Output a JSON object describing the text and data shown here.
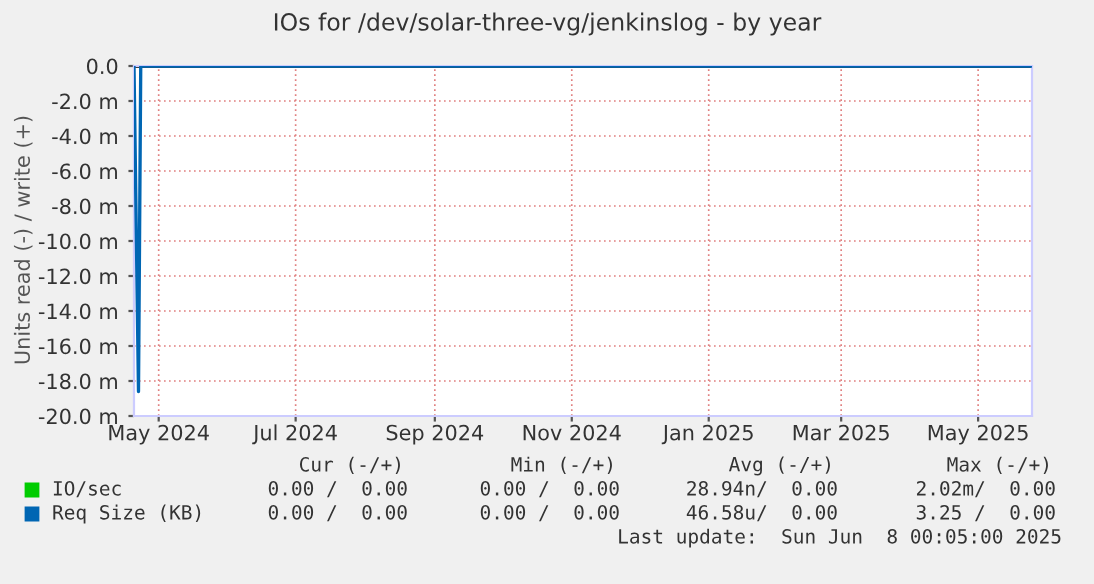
{
  "chart_data": {
    "type": "line",
    "title": "IOs for /dev/solar-three-vg/jenkinslog - by year",
    "ylabel": "Units read (-) / write (+)",
    "xlim": [
      "2024-05-04",
      "2025-06-08"
    ],
    "xticks": [
      {
        "value": "2024-05-15",
        "label": "May 2024"
      },
      {
        "value": "2024-07-15",
        "label": "Jul 2024"
      },
      {
        "value": "2024-09-15",
        "label": "Sep 2024"
      },
      {
        "value": "2024-11-15",
        "label": "Nov 2024"
      },
      {
        "value": "2025-01-15",
        "label": "Jan 2025"
      },
      {
        "value": "2025-03-15",
        "label": "Mar 2025"
      },
      {
        "value": "2025-05-15",
        "label": "May 2025"
      }
    ],
    "ylim": [
      -20,
      0
    ],
    "yticks": [
      {
        "value": 0,
        "label": "0.0"
      },
      {
        "value": -2,
        "label": "-2.0 m"
      },
      {
        "value": -4,
        "label": "-4.0 m"
      },
      {
        "value": -6,
        "label": "-6.0 m"
      },
      {
        "value": -8,
        "label": "-8.0 m"
      },
      {
        "value": -10,
        "label": "-10.0 m"
      },
      {
        "value": -12,
        "label": "-12.0 m"
      },
      {
        "value": -14,
        "label": "-14.0 m"
      },
      {
        "value": -16,
        "label": "-16.0 m"
      },
      {
        "value": -18,
        "label": "-18.0 m"
      },
      {
        "value": -20,
        "label": "-20.0 m"
      }
    ],
    "grid": true,
    "legend": "bottom",
    "ref_lines": [
      {
        "axis": "y",
        "value": 0,
        "color": "#000000"
      }
    ],
    "series": [
      {
        "name": "IO/sec",
        "color": "#00cc00"
      },
      {
        "name": "Req Size (KB)",
        "color": "#0066b3",
        "x": [
          "2024-05-04",
          "2024-05-06",
          "2024-05-07",
          "2025-06-08"
        ],
        "values": [
          0,
          -18.6,
          0,
          0
        ]
      }
    ],
    "annotations": [
      "Cur (-/+)",
      "Min (-/+)",
      "Avg (-/+)",
      "Max (-/+)",
      "0.00 /  0.00",
      "0.00 /  0.00",
      "28.94n/  0.00",
      "2.02m/  0.00",
      "0.00 /  0.00",
      "0.00 /  0.00",
      "46.58u/  0.00",
      "3.25 /  0.00",
      "Last update:  Sun Jun  8 00:05:00 2025"
    ]
  }
}
